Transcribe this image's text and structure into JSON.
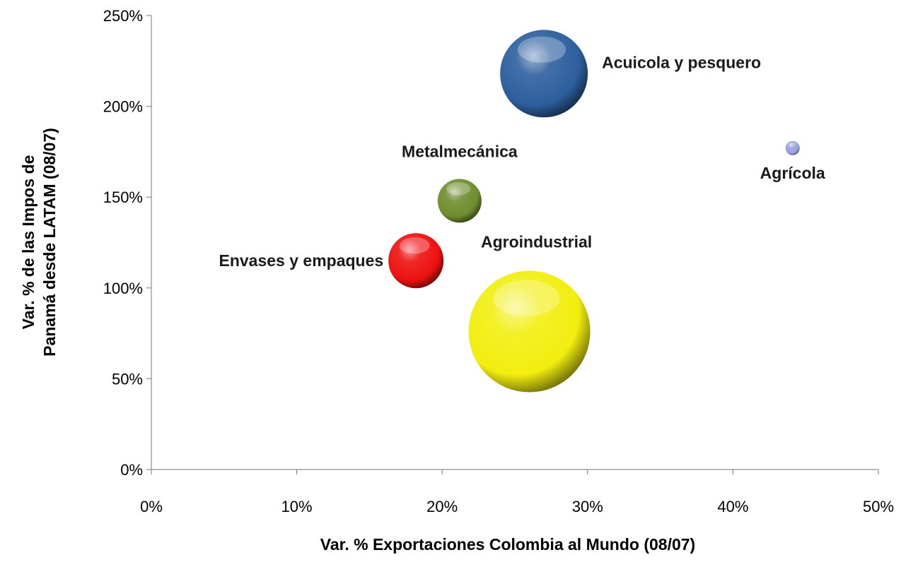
{
  "chart_data": {
    "type": "scatter",
    "variant": "bubble",
    "xlabel": "Var. % Exportaciones Colombia al Mundo (08/07)",
    "ylabel_lines": [
      "Var. % de las Impos de",
      "Panamá desde LATAM (08/07)"
    ],
    "xlim": [
      0,
      50
    ],
    "ylim": [
      0,
      250
    ],
    "x_ticks": [
      0,
      10,
      20,
      30,
      40,
      50
    ],
    "y_ticks": [
      0,
      50,
      100,
      150,
      200,
      250
    ],
    "x_tick_labels": [
      "0%",
      "10%",
      "20%",
      "30%",
      "40%",
      "50%"
    ],
    "y_tick_labels": [
      "0%",
      "50%",
      "100%",
      "150%",
      "200%",
      "250%"
    ],
    "grid": false,
    "series": [
      {
        "name": "Acuicola y pesquero",
        "x": 27.0,
        "y": 218,
        "size": 62,
        "color": "#2d5f9e",
        "label_position": "right"
      },
      {
        "name": "Agrícola",
        "x": 44.1,
        "y": 177,
        "size": 10,
        "color": "#9aa0de",
        "label_position": "below"
      },
      {
        "name": "Metalmecánica",
        "x": 21.2,
        "y": 148,
        "size": 31,
        "color": "#6f8e2e",
        "label_position": "above"
      },
      {
        "name": "Envases y empaques",
        "x": 18.2,
        "y": 115,
        "size": 39,
        "color": "#ee1111",
        "label_position": "left"
      },
      {
        "name": "Agroindustrial",
        "x": 26.0,
        "y": 76,
        "size": 86,
        "color": "#f2ee10",
        "label_position": "above-right"
      }
    ]
  }
}
